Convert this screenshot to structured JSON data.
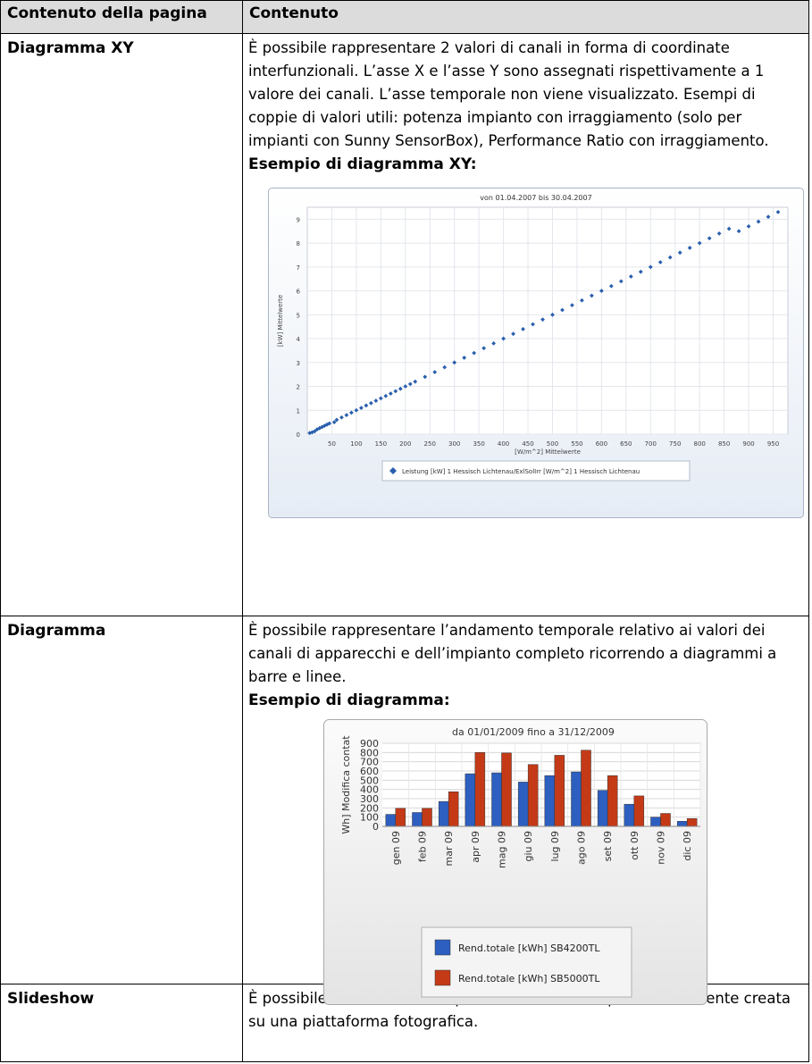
{
  "header": {
    "col1": "Contenuto della pagina",
    "col2": "Contenuto"
  },
  "rows": [
    {
      "name": "Diagramma XY",
      "description": "È possibile rappresentare 2 valori di canali in forma di coordinate interfunzionali. L’asse X e l’asse Y sono assegnati rispettivamente a 1 valore dei canali. L’asse temporale non viene visualizzato. Esempi di coppie di valori utili: potenza impianto con irraggiamento (solo per impianti con Sunny SensorBox), Performance Ratio con irraggiamento.",
      "example_title": "Esempio di diagramma XY:"
    },
    {
      "name": "Diagramma",
      "description": "È possibile rappresentare l’andamento temporale relativo ai valori dei canali di apparecchi e dell’impianto completo ricorrendo a diagrammi a barre e linee.",
      "example_title": "Esempio di diagramma:"
    },
    {
      "name": "Slideshow",
      "description": "È possibile visualizzare una presentazione slide, precedentemente creata su una piattaforma fotografica."
    }
  ],
  "chart_data": [
    {
      "type": "scatter",
      "title": "von 01.04.2007 bis 30.04.2007",
      "xlabel": "[W/m^2] Mittelwerte",
      "ylabel": "[kW] Mittelwerte",
      "xlim": [
        0,
        980
      ],
      "ylim": [
        0,
        9.5
      ],
      "xticks": [
        50,
        100,
        150,
        200,
        250,
        300,
        350,
        400,
        450,
        500,
        550,
        600,
        650,
        700,
        750,
        800,
        850,
        900,
        950
      ],
      "yticks": [
        0,
        1,
        2,
        3,
        4,
        5,
        6,
        7,
        8,
        9
      ],
      "grid": true,
      "legend_position": "bottom",
      "series": [
        {
          "name": "Leistung [kW] 1 Hessisch Lichtenau/ExlSolIrr [W/m^2] 1 Hessisch Lichtenau",
          "color": "#2a5fae",
          "points": [
            [
              5,
              0.05
            ],
            [
              10,
              0.08
            ],
            [
              15,
              0.12
            ],
            [
              20,
              0.2
            ],
            [
              25,
              0.25
            ],
            [
              30,
              0.3
            ],
            [
              35,
              0.35
            ],
            [
              40,
              0.4
            ],
            [
              45,
              0.45
            ],
            [
              55,
              0.5
            ],
            [
              60,
              0.6
            ],
            [
              70,
              0.7
            ],
            [
              80,
              0.8
            ],
            [
              90,
              0.9
            ],
            [
              100,
              1.0
            ],
            [
              110,
              1.1
            ],
            [
              120,
              1.2
            ],
            [
              130,
              1.3
            ],
            [
              140,
              1.4
            ],
            [
              150,
              1.5
            ],
            [
              160,
              1.6
            ],
            [
              170,
              1.7
            ],
            [
              180,
              1.8
            ],
            [
              190,
              1.9
            ],
            [
              200,
              2.0
            ],
            [
              210,
              2.1
            ],
            [
              220,
              2.2
            ],
            [
              240,
              2.4
            ],
            [
              260,
              2.6
            ],
            [
              280,
              2.8
            ],
            [
              300,
              3.0
            ],
            [
              320,
              3.2
            ],
            [
              340,
              3.4
            ],
            [
              360,
              3.6
            ],
            [
              380,
              3.8
            ],
            [
              400,
              4.0
            ],
            [
              420,
              4.2
            ],
            [
              440,
              4.4
            ],
            [
              460,
              4.6
            ],
            [
              480,
              4.8
            ],
            [
              500,
              5.0
            ],
            [
              520,
              5.2
            ],
            [
              540,
              5.4
            ],
            [
              560,
              5.6
            ],
            [
              580,
              5.8
            ],
            [
              600,
              6.0
            ],
            [
              620,
              6.2
            ],
            [
              640,
              6.4
            ],
            [
              660,
              6.6
            ],
            [
              680,
              6.8
            ],
            [
              700,
              7.0
            ],
            [
              720,
              7.2
            ],
            [
              740,
              7.4
            ],
            [
              760,
              7.6
            ],
            [
              780,
              7.8
            ],
            [
              800,
              8.0
            ],
            [
              820,
              8.2
            ],
            [
              840,
              8.4
            ],
            [
              860,
              8.6
            ],
            [
              880,
              8.5
            ],
            [
              900,
              8.7
            ],
            [
              920,
              8.9
            ],
            [
              940,
              9.1
            ],
            [
              960,
              9.3
            ]
          ]
        }
      ]
    },
    {
      "type": "bar",
      "title": "da 01/01/2009 fino a 31/12/2009",
      "ylabel": "Wh] Modifica contat",
      "categories": [
        "gen 09",
        "feb 09",
        "mar 09",
        "apr 09",
        "mag 09",
        "giu 09",
        "lug 09",
        "ago 09",
        "set 09",
        "ott 09",
        "nov 09",
        "dic 09"
      ],
      "ylim": [
        0,
        900
      ],
      "yticks": [
        0,
        100,
        200,
        300,
        400,
        500,
        600,
        700,
        800,
        900
      ],
      "grid": true,
      "legend_position": "bottom",
      "series": [
        {
          "name": "Rend.totale [kWh] SB4200TL",
          "color": "#2d5fc0",
          "values": [
            130,
            150,
            270,
            570,
            580,
            480,
            550,
            590,
            390,
            240,
            100,
            55
          ]
        },
        {
          "name": "Rend.totale [kWh] SB5000TL",
          "color": "#c43a17",
          "values": [
            195,
            195,
            375,
            800,
            795,
            670,
            770,
            825,
            550,
            330,
            140,
            85
          ]
        }
      ]
    }
  ]
}
